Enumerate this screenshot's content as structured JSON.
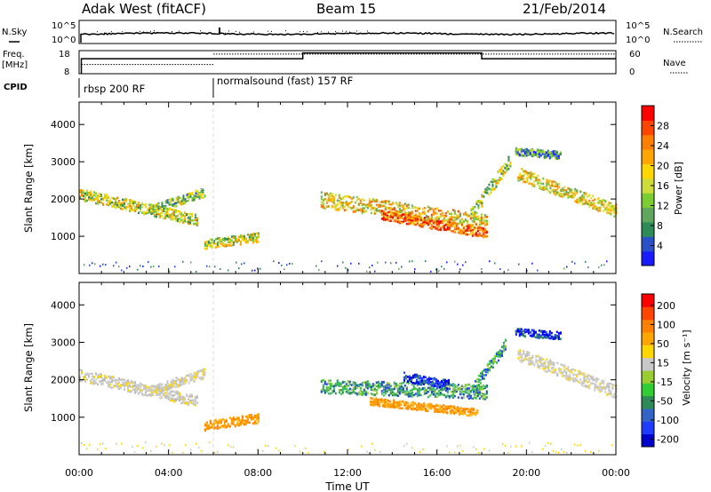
{
  "header": {
    "station": "Adak West (fitACF)",
    "beam": "Beam 15",
    "date": "21/Feb/2014"
  },
  "aux_labels": {
    "nsky": "N.Sky",
    "nsearch": "N.Search",
    "freq": "Freq.",
    "freq_unit": "[MHz]",
    "nave": "Nave",
    "cpid": "CPID",
    "noise_hi": "10^5",
    "noise_lo": "10^0",
    "freq_hi": "18",
    "freq_lo": "8",
    "nave_hi": "60",
    "nave_lo": "0"
  },
  "cpid_segments": [
    {
      "label": "rbsp 200 RF",
      "start_hour": 0
    },
    {
      "label": "normalsound (fast) 157 RF",
      "start_hour": 6
    }
  ],
  "chart_data": [
    {
      "type": "heatmap",
      "name": "power",
      "ylabel": "Slant Range [km]",
      "xlabel": "Time UT",
      "xlim_hours": [
        0,
        24
      ],
      "ylim": [
        0,
        4600
      ],
      "x_ticks": [
        "00:00",
        "04:00",
        "08:00",
        "12:00",
        "16:00",
        "20:00",
        "00:00"
      ],
      "y_ticks": [
        "1000",
        "2000",
        "3000",
        "4000"
      ],
      "colorbar": {
        "label": "Power [dB]",
        "ticks": [
          "4",
          "8",
          "12",
          "16",
          "20",
          "24",
          "28"
        ],
        "colors": [
          "#1a1aff",
          "#2a52c8",
          "#2e8b57",
          "#5fa65f",
          "#7ccd32",
          "#cddc39",
          "#ffd700",
          "#ffa500",
          "#ff7f00",
          "#ff4500",
          "#ff0000"
        ]
      },
      "echo_regions": [
        {
          "t0": 0.0,
          "t1": 5.3,
          "r_start": 2150,
          "r_end": 1450,
          "width": 300,
          "level": 0.55
        },
        {
          "t0": 3.2,
          "t1": 5.6,
          "r_start": 1750,
          "r_end": 2200,
          "width": 250,
          "level": 0.45
        },
        {
          "t0": 5.6,
          "t1": 8.0,
          "r_start": 800,
          "r_end": 1000,
          "width": 250,
          "level": 0.5
        },
        {
          "t0": 10.8,
          "t1": 18.2,
          "r_start": 2000,
          "r_end": 1400,
          "width": 420,
          "level": 0.65
        },
        {
          "t0": 13.5,
          "t1": 18.2,
          "r_start": 1600,
          "r_end": 1100,
          "width": 260,
          "level": 0.9
        },
        {
          "t0": 17.5,
          "t1": 19.3,
          "r_start": 1600,
          "r_end": 3100,
          "width": 350,
          "level": 0.5
        },
        {
          "t0": 19.6,
          "t1": 24.0,
          "r_start": 2700,
          "r_end": 1700,
          "width": 350,
          "level": 0.6
        },
        {
          "t0": 19.5,
          "t1": 21.5,
          "r_start": 3300,
          "r_end": 3200,
          "width": 200,
          "level": 0.3
        }
      ]
    },
    {
      "type": "heatmap",
      "name": "velocity",
      "ylabel": "Slant Range [km]",
      "xlabel": "Time UT",
      "xlim_hours": [
        0,
        24
      ],
      "ylim": [
        0,
        4600
      ],
      "x_ticks": [
        "00:00",
        "04:00",
        "08:00",
        "12:00",
        "16:00",
        "20:00",
        "00:00"
      ],
      "y_ticks": [
        "1000",
        "2000",
        "3000",
        "4000"
      ],
      "colorbar": {
        "label": "Velocity [m s⁻¹]",
        "ticks": [
          "200",
          "100",
          "50",
          "15",
          "-15",
          "-50",
          "-100",
          "-200"
        ],
        "colors": [
          "#0000cd",
          "#1e3cff",
          "#3264c8",
          "#2e8b57",
          "#32cd32",
          "#9acd32",
          "#c8c8c8",
          "#ffd700",
          "#ffa500",
          "#ff7f00",
          "#ff4500",
          "#ff0000"
        ]
      },
      "echo_regions": [
        {
          "t0": 0.0,
          "t1": 5.3,
          "r_start": 2150,
          "r_end": 1450,
          "width": 300,
          "vel": "gray"
        },
        {
          "t0": 3.2,
          "t1": 5.6,
          "r_start": 1750,
          "r_end": 2200,
          "width": 250,
          "vel": "gray"
        },
        {
          "t0": 5.6,
          "t1": 8.0,
          "r_start": 800,
          "r_end": 1000,
          "width": 250,
          "vel": "orange"
        },
        {
          "t0": 10.8,
          "t1": 18.2,
          "r_start": 1850,
          "r_end": 1700,
          "width": 380,
          "vel": "green"
        },
        {
          "t0": 13.0,
          "t1": 17.8,
          "r_start": 1450,
          "r_end": 1150,
          "width": 200,
          "vel": "orange"
        },
        {
          "t0": 14.5,
          "t1": 16.5,
          "r_start": 2100,
          "r_end": 1900,
          "width": 250,
          "vel": "blue"
        },
        {
          "t0": 17.6,
          "t1": 19.1,
          "r_start": 1800,
          "r_end": 3000,
          "width": 300,
          "vel": "green"
        },
        {
          "t0": 19.6,
          "t1": 24.0,
          "r_start": 2700,
          "r_end": 1700,
          "width": 350,
          "vel": "gray"
        },
        {
          "t0": 19.5,
          "t1": 21.5,
          "r_start": 3300,
          "r_end": 3200,
          "width": 200,
          "vel": "blue"
        }
      ]
    }
  ],
  "noise_data": {
    "frequency_steps": [
      {
        "t0": 0.1,
        "t1": 6.0,
        "level": 0.35
      },
      {
        "t0": 6.0,
        "t1": 10.0,
        "level": 0.35
      },
      {
        "t0": 10.0,
        "t1": 18.0,
        "level": 0.1
      },
      {
        "t0": 18.0,
        "t1": 24.0,
        "level": 0.35
      }
    ],
    "nave_steps": [
      {
        "t0": 0.1,
        "t1": 6.0,
        "level": 0.6
      },
      {
        "t0": 6.0,
        "t1": 24.0,
        "level": 0.15
      }
    ]
  }
}
